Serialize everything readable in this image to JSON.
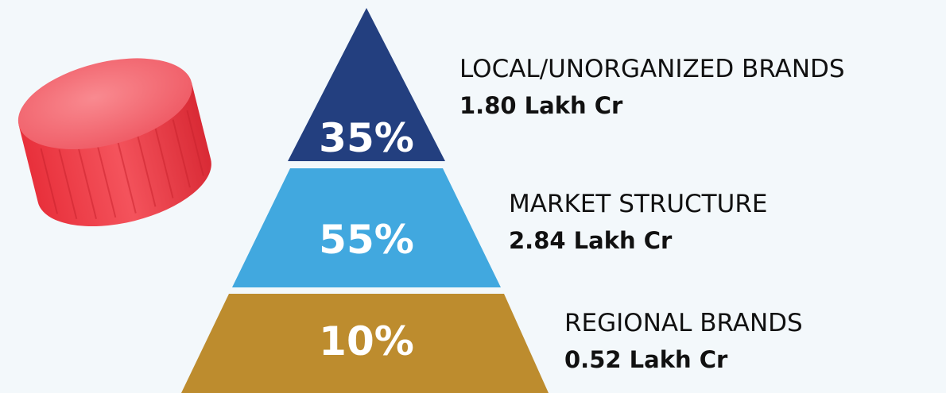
{
  "tiers": [
    {
      "percent": "35%",
      "label": "LOCAL/UNORGANIZED BRANDS",
      "value": "1.80 Lakh Cr"
    },
    {
      "percent": "55%",
      "label": "MARKET STRUCTURE",
      "value": "2.84 Lakh Cr"
    },
    {
      "percent": "10%",
      "label": "REGIONAL BRANDS",
      "value": "0.52 Lakh Cr"
    }
  ]
}
